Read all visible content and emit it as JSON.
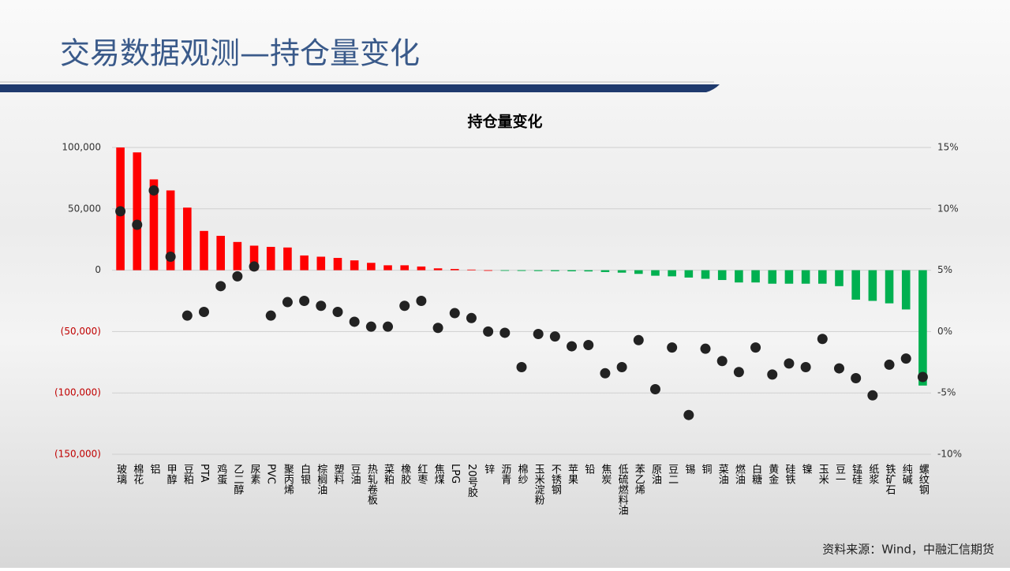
{
  "slide_title": "交易数据观测—持仓量变化",
  "source": "资料来源：Wind，中融汇信期货",
  "chart_data": {
    "type": "bar_dot",
    "title": "持仓量变化",
    "categories": [
      "玻璃",
      "棉花",
      "铝",
      "甲醇",
      "豆粕",
      "PTA",
      "鸡蛋",
      "乙二醇",
      "尿素",
      "PVC",
      "聚丙烯",
      "白银",
      "棕榈油",
      "塑料",
      "豆油",
      "热轧卷板",
      "菜粕",
      "橡胶",
      "红枣",
      "焦煤",
      "LPG",
      "20号胶",
      "锌",
      "沥青",
      "棉纱",
      "玉米淀粉",
      "不锈钢",
      "苹果",
      "铅",
      "焦炭",
      "低硫燃料油",
      "苯乙烯",
      "原油",
      "豆二",
      "锡",
      "铜",
      "菜油",
      "燃油",
      "白糖",
      "黄金",
      "硅铁",
      "镍",
      "玉米",
      "豆一",
      "锰硅",
      "纸浆",
      "铁矿石",
      "纯碱",
      "螺纹钢"
    ],
    "series": [
      {
        "name": "持仓量变化",
        "positive_color": "#ff0000",
        "negative_color": "#00b050",
        "values": [
          100000,
          96000,
          74000,
          65000,
          51000,
          32000,
          28000,
          23000,
          20000,
          19000,
          18500,
          12000,
          11000,
          10000,
          8000,
          6000,
          4000,
          4000,
          3000,
          1500,
          1000,
          500,
          0,
          -500,
          -600,
          -700,
          -800,
          -900,
          -1000,
          -1500,
          -2000,
          -3000,
          -4500,
          -5000,
          -6000,
          -7000,
          -8000,
          -10000,
          -10000,
          -11000,
          -11000,
          -11000,
          -11000,
          -13000,
          -24000,
          -25000,
          -27000,
          -32000,
          -94000
        ]
      },
      {
        "name": "持仓量变化率",
        "color": "#222222",
        "axis": "y2",
        "values": [
          9.8,
          8.7,
          11.5,
          6.1,
          1.3,
          1.6,
          3.7,
          4.5,
          5.3,
          1.3,
          2.4,
          2.5,
          2.1,
          1.6,
          0.8,
          0.4,
          0.4,
          2.1,
          2.5,
          0.3,
          1.5,
          1.1,
          0.0,
          -0.1,
          -2.9,
          -0.2,
          -0.4,
          -1.2,
          -1.1,
          -3.4,
          -2.9,
          -0.7,
          -4.7,
          -1.3,
          -6.8,
          -1.4,
          -2.4,
          -3.3,
          -1.3,
          -3.5,
          -2.6,
          -2.9,
          -0.6,
          -3.0,
          -3.8,
          -5.2,
          -2.7,
          -2.2,
          -3.7
        ]
      }
    ],
    "ylim": [
      -150000,
      100000
    ],
    "yticks": [
      {
        "value": 100000,
        "label": "100,000"
      },
      {
        "value": 50000,
        "label": "50,000"
      },
      0,
      {
        "value": -50000,
        "label": "(50,000)"
      },
      {
        "value": -100000,
        "label": "(100,000)"
      },
      {
        "value": -150000,
        "label": "(150,000)"
      }
    ],
    "y2lim": [
      -10,
      15
    ],
    "y2ticks": [
      {
        "value": 15,
        "label": "15%"
      },
      {
        "value": 10,
        "label": "10%"
      },
      {
        "value": 5,
        "label": "5%"
      },
      {
        "value": 0,
        "label": "0%"
      },
      {
        "value": -5,
        "label": "-5%"
      },
      {
        "value": -10,
        "label": "-10%"
      }
    ],
    "negative_label_color": "#c00000",
    "grid": true
  }
}
